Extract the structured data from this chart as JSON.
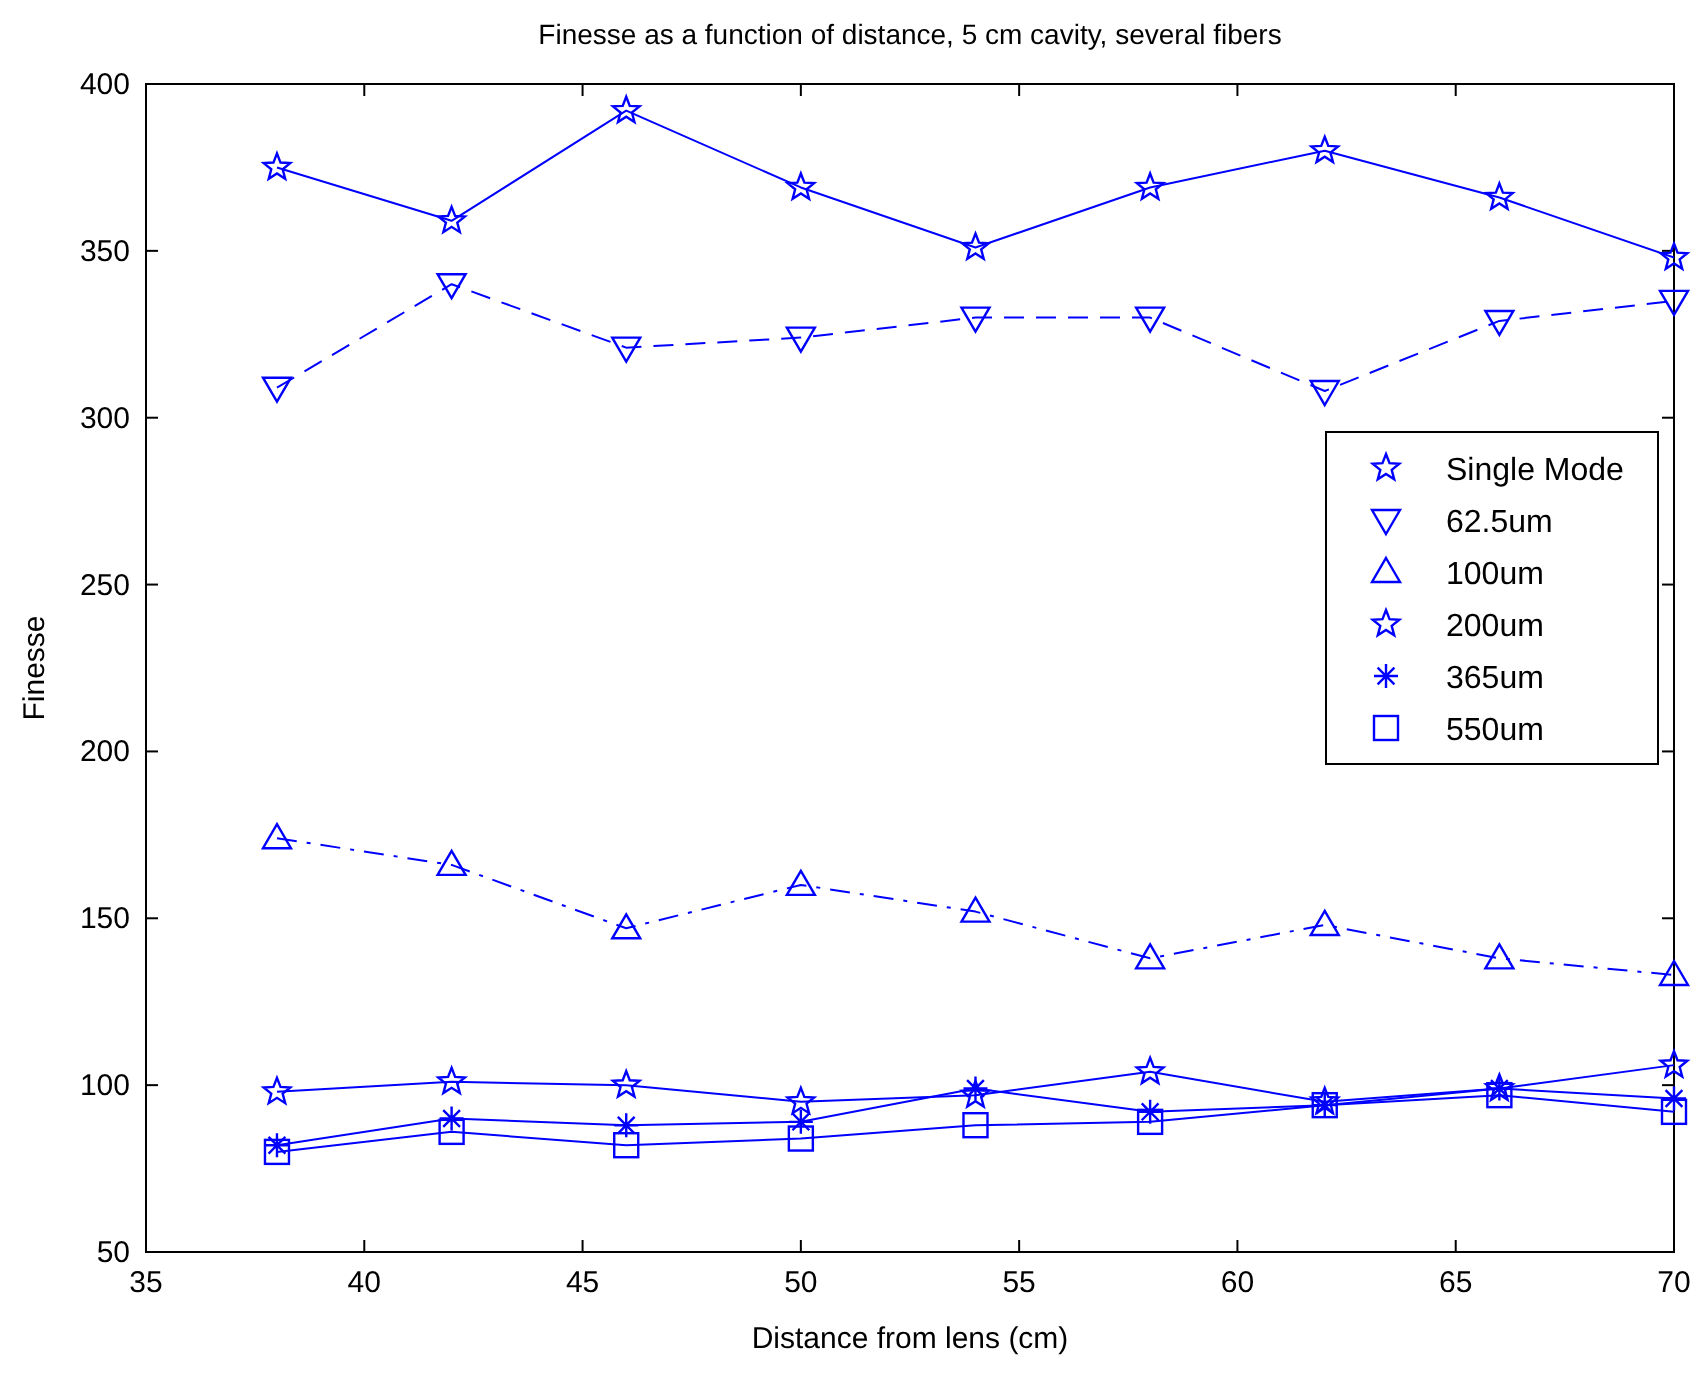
{
  "chart_data": {
    "type": "line",
    "title": "Finesse as a function of distance, 5 cm cavity, several fibers",
    "xlabel": "Distance from lens (cm)",
    "ylabel": "Finesse",
    "x": [
      38,
      42,
      46,
      50,
      54,
      58,
      62,
      66,
      70
    ],
    "series": [
      {
        "name": "Single Mode",
        "color": "#0000ff",
        "marker": "star",
        "line_style": "solid",
        "values": [
          375,
          359,
          392,
          369,
          351,
          369,
          380,
          366,
          348
        ]
      },
      {
        "name": "62.5um",
        "color": "#0000ff",
        "marker": "triangle-down",
        "line_style": "dashed",
        "values": [
          309,
          340,
          321,
          324,
          330,
          330,
          308,
          329,
          335
        ]
      },
      {
        "name": "100um",
        "color": "#0000ff",
        "marker": "triangle",
        "line_style": "dashdot",
        "values": [
          174,
          166,
          147,
          160,
          152,
          138,
          148,
          138,
          133
        ]
      },
      {
        "name": "200um",
        "color": "#0000ff",
        "marker": "star",
        "line_style": "solid",
        "values": [
          98,
          101,
          100,
          95,
          97,
          104,
          95,
          99,
          106
        ]
      },
      {
        "name": "365um",
        "color": "#0000ff",
        "marker": "cross",
        "line_style": "solid",
        "values": [
          82,
          90,
          88,
          89,
          99,
          92,
          94,
          99,
          96
        ]
      },
      {
        "name": "550um",
        "color": "#0000ff",
        "marker": "square",
        "line_style": "solid",
        "values": [
          80,
          86,
          82,
          84,
          88,
          89,
          94,
          97,
          92
        ]
      }
    ],
    "xlim": [
      35,
      70
    ],
    "xticks": [
      35,
      40,
      45,
      50,
      55,
      60,
      65,
      70
    ],
    "ylim": [
      50,
      400
    ],
    "yticks": [
      50,
      100,
      150,
      200,
      250,
      300,
      350,
      400
    ],
    "grid": false,
    "legend": "right"
  }
}
